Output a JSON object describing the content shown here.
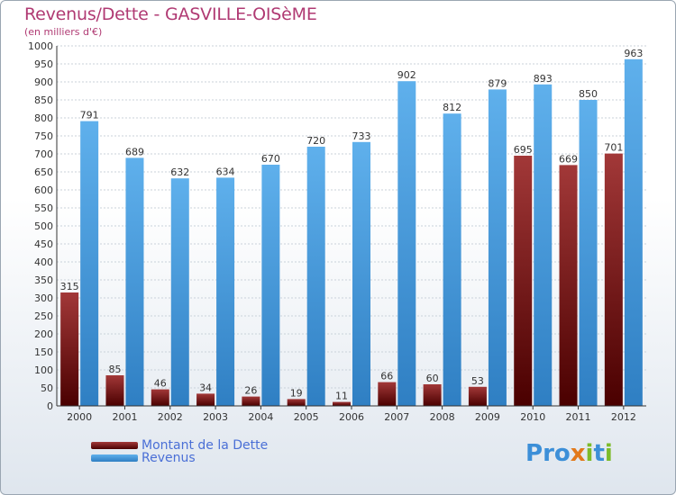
{
  "title": "Revenus/Dette - GASVILLE-OISèME",
  "subtitle": "(en milliers d'€)",
  "legend": [
    {
      "label": "Montant de la Dette",
      "color": "#7a1a1a"
    },
    {
      "label": "Revenus",
      "color": "#4aa3e6"
    }
  ],
  "logo": {
    "text": "Proxiti",
    "letters": [
      "P",
      "r",
      "o",
      "x",
      "i",
      "t",
      "i"
    ],
    "colors": [
      "#3c8fd8",
      "#3c8fd8",
      "#3c8fd8",
      "#e2791b",
      "#7dbb2a",
      "#3c8fd8",
      "#7dbb2a"
    ]
  },
  "colors": {
    "dette": "#7a1a1a",
    "revenus": "#4aa3e6",
    "grid": "#c9d2da",
    "axis": "#333333",
    "label": "#333333"
  },
  "chart_data": {
    "type": "bar",
    "title": "Revenus/Dette - GASVILLE-OISèME",
    "ylabel": "(en milliers d'€)",
    "xlabel": "",
    "ylim": [
      0,
      1000
    ],
    "yticks": [
      0,
      50,
      100,
      150,
      200,
      250,
      300,
      350,
      400,
      450,
      500,
      550,
      600,
      650,
      700,
      750,
      800,
      850,
      900,
      950,
      1000
    ],
    "categories": [
      "2000",
      "2001",
      "2002",
      "2003",
      "2004",
      "2005",
      "2006",
      "2007",
      "2008",
      "2009",
      "2010",
      "2011",
      "2012"
    ],
    "series": [
      {
        "name": "Montant de la Dette",
        "values": [
          315,
          85,
          46,
          34,
          26,
          19,
          11,
          66,
          60,
          53,
          695,
          669,
          701
        ]
      },
      {
        "name": "Revenus",
        "values": [
          791,
          689,
          632,
          634,
          670,
          720,
          733,
          902,
          812,
          879,
          893,
          850,
          963
        ]
      }
    ],
    "grid": true,
    "legend_position": "bottom-left"
  }
}
